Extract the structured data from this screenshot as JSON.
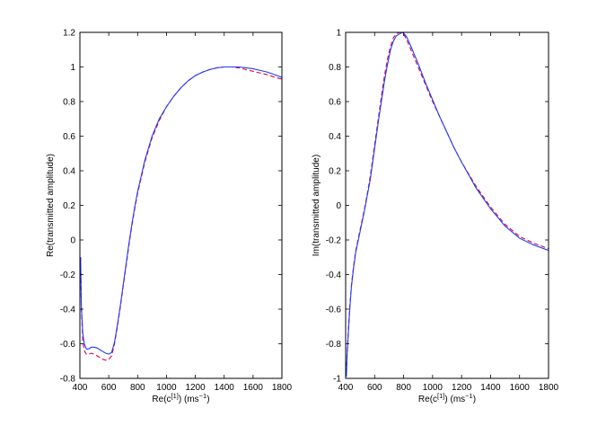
{
  "chart_data": [
    {
      "type": "line",
      "xlabel_main": "Re(c",
      "xlabel_sup": "[1]",
      "xlabel_tail": ") (ms",
      "xlabel_unit_sup": "−1",
      "xlabel_close": ")",
      "ylabel": "Re(transmitted amplitude)",
      "xlim": [
        400,
        1800
      ],
      "ylim": [
        -0.8,
        1.2
      ],
      "xticks": [
        400,
        600,
        800,
        1000,
        1200,
        1400,
        1600,
        1800
      ],
      "xtick_labels": [
        "400",
        "600",
        "800",
        "1000",
        "1200",
        "1400",
        "1600",
        "1800"
      ],
      "yticks": [
        -0.8,
        -0.6,
        -0.4,
        -0.2,
        0,
        0.2,
        0.4,
        0.6,
        0.8,
        1,
        1.2
      ],
      "ytick_labels": [
        "-0.8",
        "-0.6",
        "-0.4",
        "-0.2",
        "0",
        "0.2",
        "0.4",
        "0.6",
        "0.8",
        "1",
        "1.2"
      ],
      "grid": false,
      "series": [
        {
          "color": "#e0003c",
          "dashed": true,
          "x": [
            405,
            410,
            420,
            430,
            445,
            460,
            480,
            500,
            520,
            540,
            560,
            580,
            600,
            620,
            640,
            660,
            680,
            700,
            720,
            740,
            760,
            780,
            800,
            850,
            900,
            950,
            1000,
            1050,
            1100,
            1150,
            1200,
            1250,
            1300,
            1350,
            1400,
            1450,
            1500,
            1550,
            1600,
            1650,
            1700,
            1750,
            1800
          ],
          "y": [
            -0.1,
            -0.4,
            -0.58,
            -0.64,
            -0.66,
            -0.66,
            -0.655,
            -0.66,
            -0.67,
            -0.68,
            -0.69,
            -0.695,
            -0.69,
            -0.67,
            -0.6,
            -0.5,
            -0.39,
            -0.27,
            -0.15,
            -0.03,
            0.08,
            0.18,
            0.27,
            0.45,
            0.59,
            0.69,
            0.77,
            0.83,
            0.88,
            0.92,
            0.95,
            0.97,
            0.985,
            0.995,
            1.0,
            1.0,
            0.995,
            0.985,
            0.975,
            0.965,
            0.955,
            0.94,
            0.93
          ]
        },
        {
          "color": "#1f3bff",
          "dashed": false,
          "x": [
            405,
            410,
            420,
            430,
            445,
            460,
            480,
            500,
            520,
            540,
            560,
            580,
            600,
            620,
            640,
            660,
            680,
            700,
            720,
            740,
            760,
            780,
            800,
            850,
            900,
            950,
            1000,
            1050,
            1100,
            1150,
            1200,
            1250,
            1300,
            1350,
            1400,
            1450,
            1500,
            1550,
            1600,
            1650,
            1700,
            1750,
            1800
          ],
          "y": [
            -0.1,
            -0.38,
            -0.54,
            -0.6,
            -0.63,
            -0.63,
            -0.62,
            -0.62,
            -0.625,
            -0.635,
            -0.645,
            -0.655,
            -0.66,
            -0.65,
            -0.59,
            -0.49,
            -0.38,
            -0.26,
            -0.14,
            -0.02,
            0.09,
            0.19,
            0.28,
            0.46,
            0.6,
            0.7,
            0.77,
            0.83,
            0.88,
            0.92,
            0.95,
            0.97,
            0.985,
            0.995,
            1.0,
            1.0,
            1.0,
            0.995,
            0.99,
            0.98,
            0.97,
            0.955,
            0.94
          ]
        }
      ]
    },
    {
      "type": "line",
      "xlabel_main": "Re(c",
      "xlabel_sup": "[1]",
      "xlabel_tail": ") (ms",
      "xlabel_unit_sup": "−1",
      "xlabel_close": ")",
      "ylabel": "Im(transmitted amplitude)",
      "xlim": [
        400,
        1800
      ],
      "ylim": [
        -1,
        1
      ],
      "xticks": [
        400,
        600,
        800,
        1000,
        1200,
        1400,
        1600,
        1800
      ],
      "xtick_labels": [
        "400",
        "600",
        "800",
        "1000",
        "1200",
        "1400",
        "1600",
        "1800"
      ],
      "yticks": [
        -1,
        -0.8,
        -0.6,
        -0.4,
        -0.2,
        0,
        0.2,
        0.4,
        0.6,
        0.8,
        1
      ],
      "ytick_labels": [
        "-1",
        "-0.8",
        "-0.6",
        "-0.4",
        "-0.2",
        "0",
        "0.2",
        "0.4",
        "0.6",
        "0.8",
        "1"
      ],
      "grid": false,
      "series": [
        {
          "color": "#e0003c",
          "dashed": true,
          "x": [
            405,
            410,
            420,
            430,
            440,
            455,
            470,
            490,
            510,
            530,
            550,
            570,
            590,
            610,
            630,
            650,
            670,
            690,
            710,
            730,
            750,
            770,
            790,
            800,
            820,
            850,
            900,
            950,
            1000,
            1050,
            1100,
            1150,
            1200,
            1300,
            1400,
            1500,
            1600,
            1700,
            1800
          ],
          "y": [
            -0.97,
            -0.85,
            -0.7,
            -0.57,
            -0.46,
            -0.35,
            -0.26,
            -0.18,
            -0.1,
            -0.02,
            0.07,
            0.17,
            0.29,
            0.41,
            0.53,
            0.65,
            0.76,
            0.85,
            0.92,
            0.97,
            0.99,
            1.0,
            0.995,
            0.99,
            0.96,
            0.9,
            0.8,
            0.7,
            0.6,
            0.51,
            0.42,
            0.33,
            0.25,
            0.11,
            -0.01,
            -0.11,
            -0.18,
            -0.22,
            -0.25
          ]
        },
        {
          "color": "#1f3bff",
          "dashed": false,
          "x": [
            405,
            410,
            420,
            430,
            440,
            455,
            470,
            490,
            510,
            530,
            550,
            570,
            590,
            610,
            630,
            650,
            670,
            690,
            710,
            730,
            750,
            770,
            790,
            800,
            820,
            850,
            900,
            950,
            1000,
            1050,
            1100,
            1150,
            1200,
            1300,
            1400,
            1500,
            1600,
            1700,
            1800
          ],
          "y": [
            -0.99,
            -0.87,
            -0.72,
            -0.58,
            -0.47,
            -0.36,
            -0.27,
            -0.19,
            -0.11,
            -0.03,
            0.06,
            0.15,
            0.27,
            0.39,
            0.51,
            0.62,
            0.73,
            0.82,
            0.9,
            0.95,
            0.98,
            0.99,
            1.0,
            0.995,
            0.975,
            0.92,
            0.82,
            0.71,
            0.61,
            0.51,
            0.42,
            0.33,
            0.25,
            0.1,
            -0.02,
            -0.12,
            -0.19,
            -0.23,
            -0.26
          ]
        }
      ]
    }
  ]
}
